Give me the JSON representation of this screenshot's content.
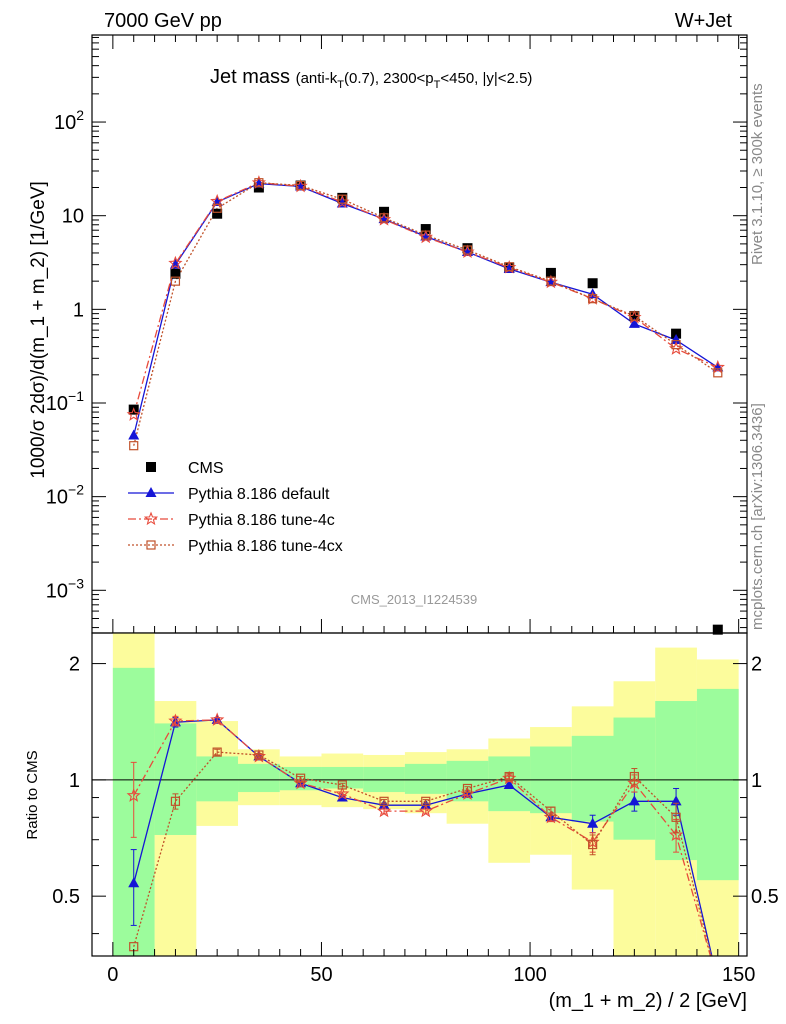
{
  "header": {
    "left": "7000 GeV pp",
    "right": "W+Jet"
  },
  "side_labels": {
    "rivet": "Rivet 3.1.10, ≥ 300k events",
    "mcplots": "mcplots.cern.ch [arXiv:1306.3436]"
  },
  "watermark": "CMS_2013_I1224539",
  "chart_data": [
    {
      "type": "scatter",
      "panel": "main",
      "title": "Jet mass",
      "title_detail": "(anti-k_T(0.7), 2300<p_T<450, |y|<2.5)",
      "ylabel": "1000/σ 2dσ)/d(m_1 + m_2) [1/GeV]",
      "xlim": [
        -5,
        152
      ],
      "ylim": [
        0.00035,
        850
      ],
      "yscale": "log",
      "y_ticks": [
        {
          "value": 0.001,
          "base": "10",
          "exp": "−3"
        },
        {
          "value": 0.01,
          "base": "10",
          "exp": "−2"
        },
        {
          "value": 0.1,
          "base": "10",
          "exp": "−1"
        },
        {
          "value": 1,
          "base": "1",
          "exp": ""
        },
        {
          "value": 10,
          "base": "10",
          "exp": ""
        },
        {
          "value": 100,
          "base": "10",
          "exp": "2"
        }
      ],
      "x": [
        5,
        15,
        25,
        35,
        45,
        55,
        65,
        75,
        85,
        95,
        105,
        115,
        125,
        135,
        145
      ],
      "series": [
        {
          "name": "CMS",
          "color": "#000000",
          "marker": "square",
          "values": [
            0.085,
            2.4,
            10.5,
            20.0,
            21.0,
            15.5,
            11.0,
            7.2,
            4.5,
            2.8,
            2.45,
            1.9,
            0.85,
            0.55,
            0.00038
          ]
        },
        {
          "name": "Pythia 8.186 default",
          "color": "#1515d6",
          "marker": "triangle",
          "values": [
            0.045,
            3.0,
            14.0,
            22.0,
            20.5,
            13.5,
            9.2,
            6.0,
            4.1,
            2.7,
            1.95,
            1.45,
            0.7,
            0.47,
            0.24
          ]
        },
        {
          "name": "Pythia 8.186 tune-4c",
          "color": "#e84b3c",
          "marker": "star",
          "values": [
            0.075,
            3.1,
            14.2,
            22.5,
            20.6,
            14.0,
            9.1,
            5.9,
            4.1,
            2.8,
            1.95,
            1.3,
            0.82,
            0.38,
            0.24
          ]
        },
        {
          "name": "Pythia 8.186 tune-4cx",
          "color": "#c0522a",
          "marker": "open-square",
          "values": [
            0.035,
            2.0,
            12.0,
            22.5,
            21.0,
            15.0,
            9.5,
            6.2,
            4.3,
            2.85,
            2.0,
            1.3,
            0.85,
            0.42,
            0.21
          ]
        }
      ]
    },
    {
      "type": "scatter",
      "panel": "ratio",
      "ylabel": "Ratio to CMS",
      "xlabel": "(m_1 + m_2) / 2 [GeV]",
      "xlim": [
        -5,
        152
      ],
      "ylim": [
        0.35,
        2.4
      ],
      "y_ticks": [
        0.5,
        1,
        2
      ],
      "x_ticks": [
        0,
        50,
        100,
        150
      ],
      "reference": 1,
      "bands": {
        "bins": [
          [
            0,
            10
          ],
          [
            10,
            20
          ],
          [
            20,
            30
          ],
          [
            30,
            40
          ],
          [
            40,
            50
          ],
          [
            50,
            60
          ],
          [
            60,
            70
          ],
          [
            70,
            80
          ],
          [
            80,
            90
          ],
          [
            90,
            100
          ],
          [
            100,
            110
          ],
          [
            110,
            120
          ],
          [
            120,
            130
          ],
          [
            130,
            140
          ],
          [
            140,
            150
          ]
        ],
        "inner": [
          [
            0.3,
            1.95
          ],
          [
            0.72,
            1.4
          ],
          [
            0.88,
            1.15
          ],
          [
            0.93,
            1.1
          ],
          [
            0.94,
            1.08
          ],
          [
            0.95,
            1.08
          ],
          [
            0.93,
            1.08
          ],
          [
            0.92,
            1.1
          ],
          [
            0.88,
            1.12
          ],
          [
            0.83,
            1.15
          ],
          [
            0.82,
            1.22
          ],
          [
            0.78,
            1.3
          ],
          [
            0.7,
            1.45
          ],
          [
            0.62,
            1.6
          ],
          [
            0.55,
            1.72
          ]
        ],
        "outer": [
          [
            0.3,
            2.4
          ],
          [
            0.3,
            1.6
          ],
          [
            0.76,
            1.42
          ],
          [
            0.86,
            1.2
          ],
          [
            0.86,
            1.15
          ],
          [
            0.85,
            1.17
          ],
          [
            0.84,
            1.16
          ],
          [
            0.82,
            1.18
          ],
          [
            0.77,
            1.2
          ],
          [
            0.61,
            1.28
          ],
          [
            0.64,
            1.37
          ],
          [
            0.52,
            1.55
          ],
          [
            0.3,
            1.8
          ],
          [
            0.3,
            2.2
          ],
          [
            0.3,
            2.05
          ]
        ],
        "inner_color": "#9cfc9c",
        "outer_color": "#fcfc9c"
      },
      "series": [
        {
          "name": "Pythia 8.186 default",
          "color": "#1515d6",
          "values": [
            0.54,
            1.41,
            1.43,
            1.15,
            0.98,
            0.9,
            0.86,
            0.86,
            0.92,
            0.97,
            0.8,
            0.77,
            0.88,
            0.88,
            0.3
          ],
          "errors": [
            0.12,
            0.04,
            0.02,
            0.01,
            0.01,
            0.01,
            0.01,
            0.01,
            0.01,
            0.02,
            0.02,
            0.04,
            0.05,
            0.07,
            0
          ]
        },
        {
          "name": "Pythia 8.186 tune-4c",
          "color": "#e84b3c",
          "values": [
            0.91,
            1.42,
            1.43,
            1.15,
            0.98,
            0.92,
            0.83,
            0.83,
            0.92,
            1.01,
            0.8,
            0.69,
            0.98,
            0.72,
            0.3
          ],
          "errors": [
            0.2,
            0.04,
            0.02,
            0.01,
            0.01,
            0.01,
            0.01,
            0.01,
            0.01,
            0.02,
            0.02,
            0.04,
            0.05,
            0.07,
            0
          ]
        },
        {
          "name": "Pythia 8.186 tune-4cx",
          "color": "#c0522a",
          "values": [
            0.37,
            0.88,
            1.18,
            1.16,
            1.01,
            0.97,
            0.88,
            0.88,
            0.95,
            1.02,
            0.83,
            0.68,
            1.02,
            0.8,
            0.3
          ],
          "errors": [
            0.0,
            0.04,
            0.02,
            0.01,
            0.01,
            0.01,
            0.01,
            0.01,
            0.01,
            0.02,
            0.02,
            0.04,
            0.05,
            0.07,
            0
          ]
        }
      ]
    }
  ]
}
